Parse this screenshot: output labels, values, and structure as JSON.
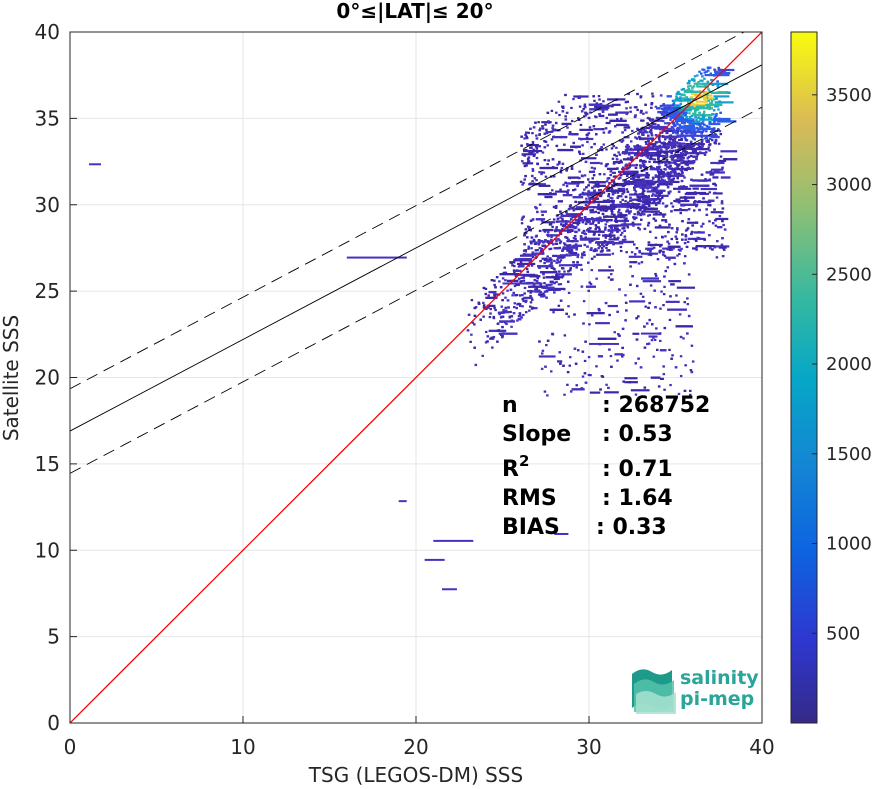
{
  "chart_data": {
    "type": "heatmap",
    "title": "0°≤|LAT|≤ 20°",
    "xlabel": "TSG (LEGOS-DM) SSS",
    "ylabel": "Satellite SSS",
    "xlim": [
      0,
      40
    ],
    "ylim": [
      0,
      40
    ],
    "xticks": [
      "0",
      "10",
      "20",
      "30",
      "40"
    ],
    "yticks": [
      "0",
      "5",
      "10",
      "15",
      "20",
      "25",
      "30",
      "35",
      "40"
    ],
    "grid": true,
    "colorbar": {
      "range": [
        0,
        3850
      ],
      "ticks": [
        "500",
        "1000",
        "1500",
        "2000",
        "2500",
        "3000",
        "3500"
      ],
      "colormap": "parula"
    },
    "identity_line": {
      "color": "#ff0000",
      "x": [
        0,
        40
      ],
      "y": [
        0,
        40
      ]
    },
    "fit_line": {
      "slope": 0.53,
      "intercept": 16.9,
      "color": "#000000"
    },
    "fit_band": {
      "offset": 2.45,
      "style": "dashed"
    },
    "density_summary": {
      "peak_location": [
        36.2,
        36.2
      ],
      "main_cloud_x_range": [
        20,
        37.8
      ],
      "main_cloud_y_range": [
        20,
        38
      ]
    },
    "stats": [
      {
        "label": "n",
        "value": ": 268752"
      },
      {
        "label": "Slope",
        "value": ": 0.53"
      },
      {
        "label": "R",
        "label_sup": "2",
        "value": ": 0.71"
      },
      {
        "label": "RMS",
        "value": ": 1.64"
      },
      {
        "label": "BIAS",
        "value": ": 0.33"
      }
    ]
  },
  "logo": {
    "line1": "salinity",
    "line2": "pi-mep"
  }
}
